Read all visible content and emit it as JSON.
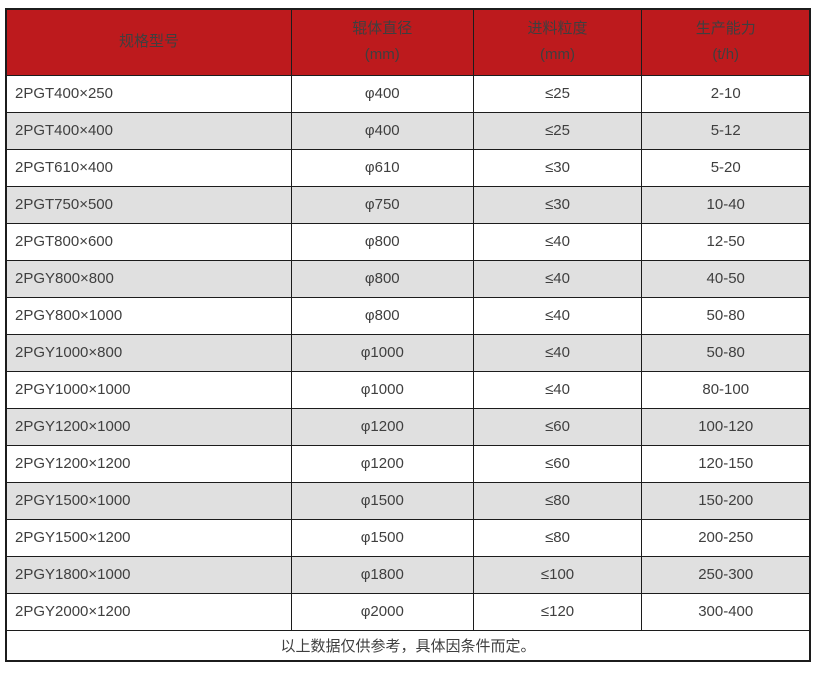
{
  "chart_data": {
    "type": "table",
    "columns": [
      {
        "label": "规格型号",
        "unit": ""
      },
      {
        "label": "辊体直径",
        "unit": "(mm)"
      },
      {
        "label": "进料粒度",
        "unit": "(mm)"
      },
      {
        "label": "生产能力",
        "unit": "(t/h)"
      }
    ],
    "rows": [
      [
        "2PGT400×250",
        "φ400",
        "≤25",
        "2-10"
      ],
      [
        "2PGT400×400",
        "φ400",
        "≤25",
        "5-12"
      ],
      [
        "2PGT610×400",
        "φ610",
        "≤30",
        "5-20"
      ],
      [
        "2PGT750×500",
        "φ750",
        "≤30",
        "10-40"
      ],
      [
        "2PGT800×600",
        "φ800",
        "≤40",
        "12-50"
      ],
      [
        "2PGY800×800",
        "φ800",
        "≤40",
        "40-50"
      ],
      [
        "2PGY800×1000",
        "φ800",
        "≤40",
        "50-80"
      ],
      [
        "2PGY1000×800",
        "φ1000",
        "≤40",
        "50-80"
      ],
      [
        "2PGY1000×1000",
        "φ1000",
        "≤40",
        "80-100"
      ],
      [
        "2PGY1200×1000",
        "φ1200",
        "≤60",
        "100-120"
      ],
      [
        "2PGY1200×1200",
        "φ1200",
        "≤60",
        "120-150"
      ],
      [
        "2PGY1500×1000",
        "φ1500",
        "≤80",
        "150-200"
      ],
      [
        "2PGY1500×1200",
        "φ1500",
        "≤80",
        "200-250"
      ],
      [
        "2PGY1800×1000",
        "φ1800",
        "≤100",
        "250-300"
      ],
      [
        "2PGY2000×1200",
        "φ2000",
        "≤120",
        "300-400"
      ]
    ],
    "footnote": "以上数据仅供参考，具体因条件而定。"
  },
  "colors": {
    "header_bg": "#bd1a1d",
    "header_text": "#ffffff",
    "row_alt_bg": "#e0e0e0",
    "row_bg": "#ffffff",
    "border": "#1c1c1c",
    "body_text": "#3f3f3f"
  }
}
